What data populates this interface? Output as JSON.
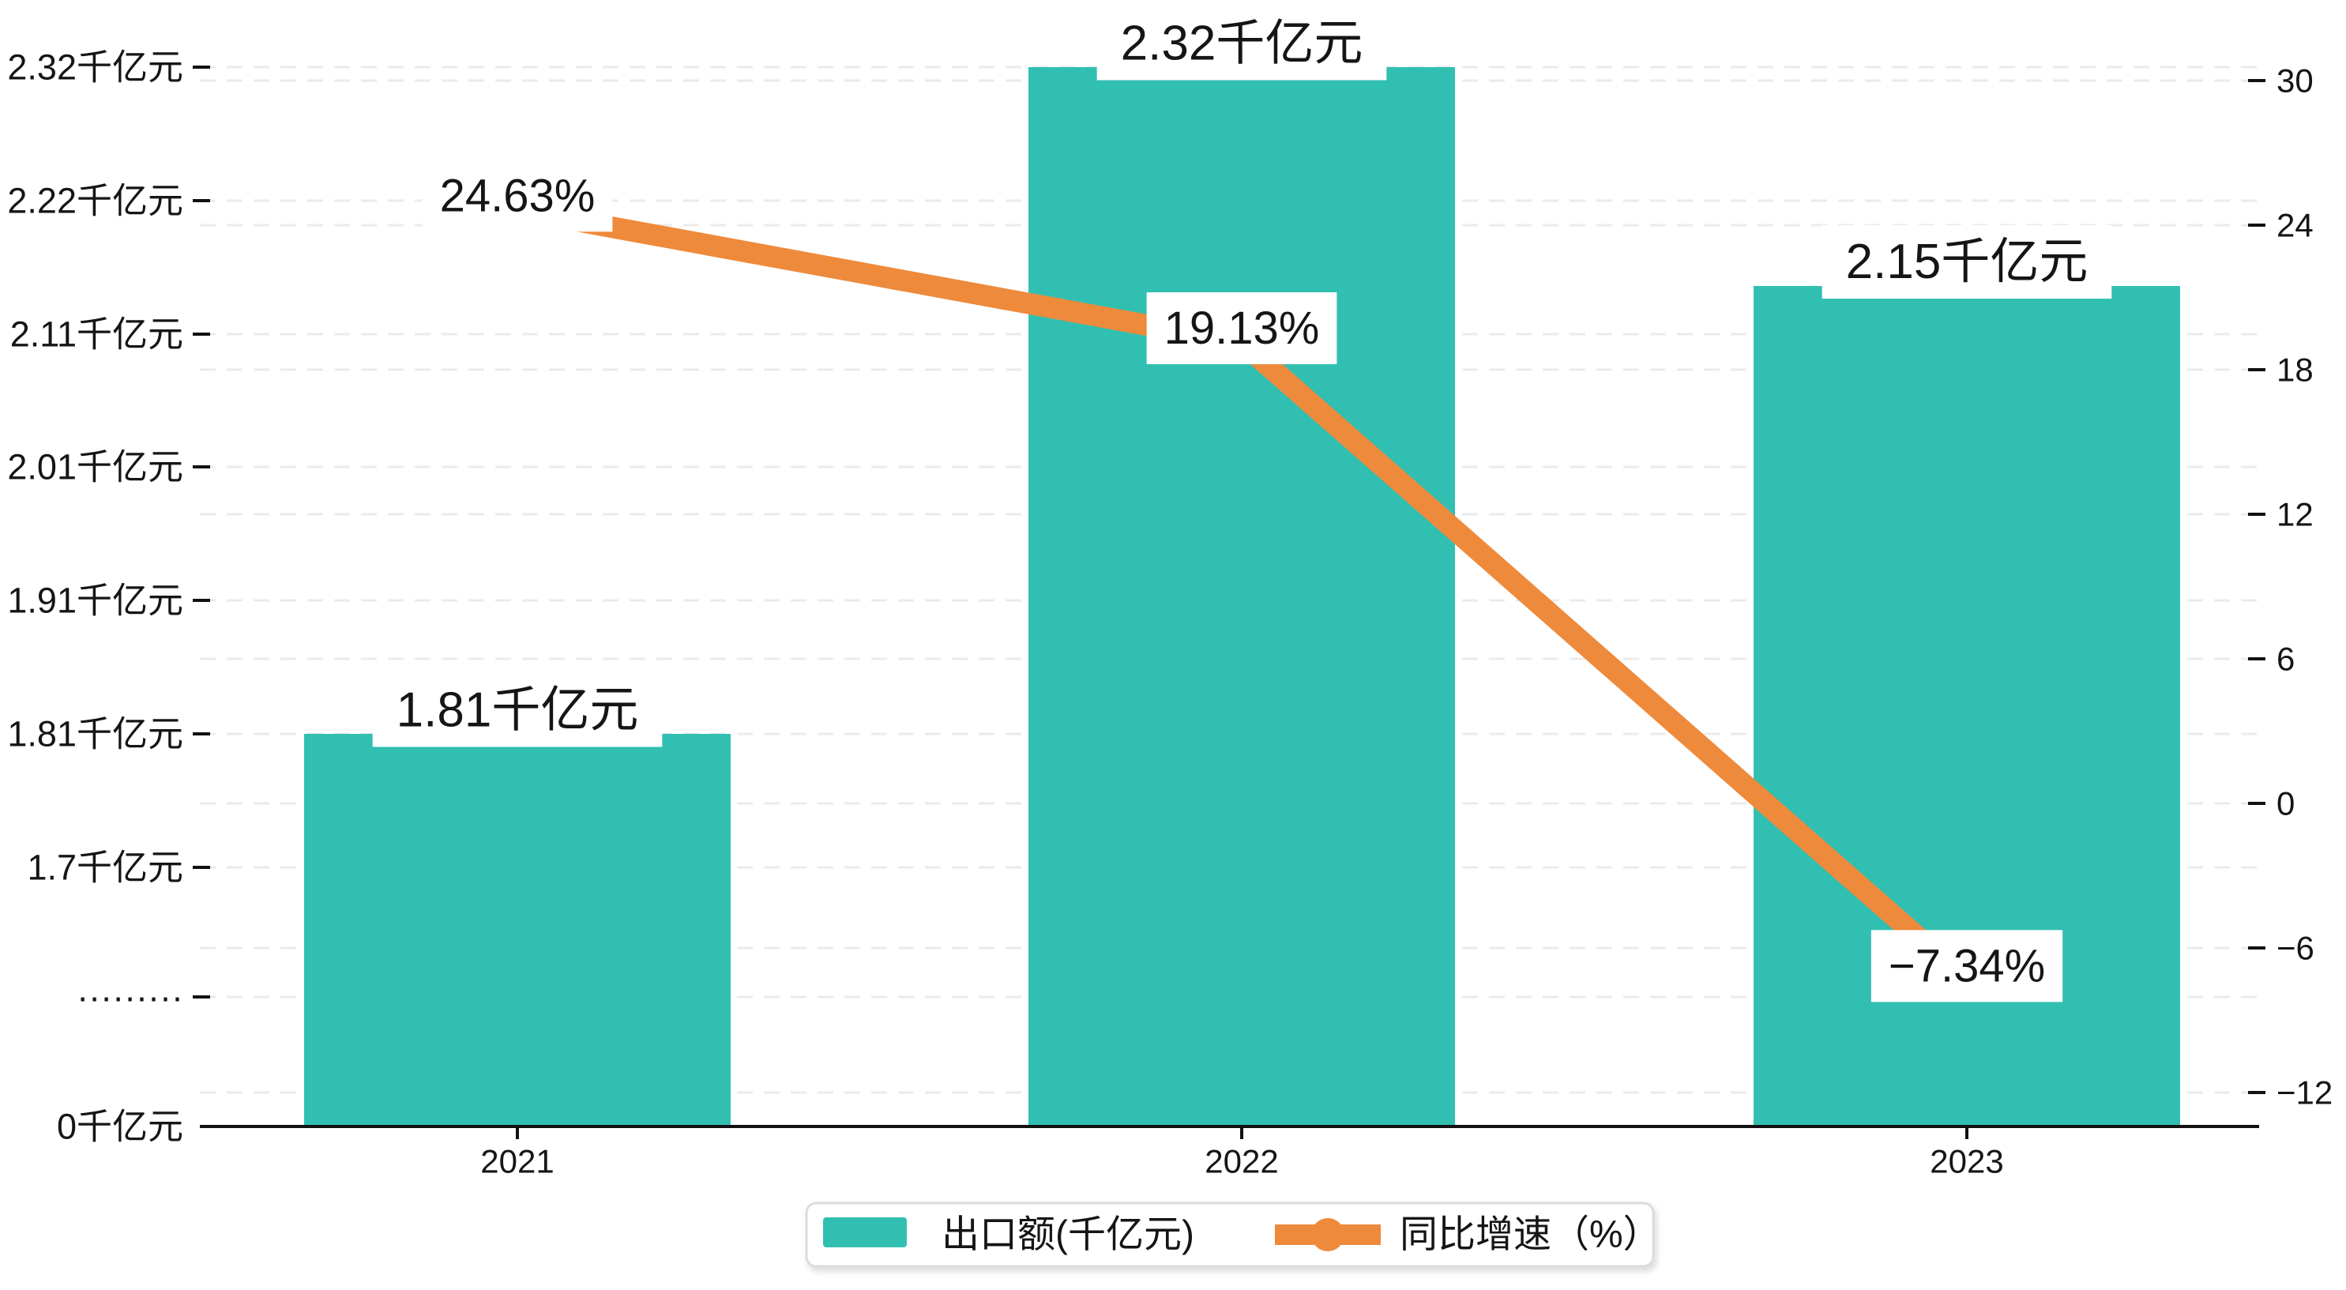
{
  "chart_data": {
    "type": "bar",
    "subtype": "bar+line dual-axis combo",
    "title": "",
    "categories": [
      "2021",
      "2022",
      "2023"
    ],
    "series": [
      {
        "name": "出口额(千亿元)",
        "type": "bar",
        "axis": "left",
        "color": "#31bfb2",
        "values": [
          1.81,
          2.32,
          2.15
        ],
        "data_labels": [
          "1.81千亿元",
          "2.32千亿元",
          "2.15千亿元"
        ]
      },
      {
        "name": "同比增速（%）",
        "type": "line",
        "axis": "right",
        "color": "#ee8a3c",
        "values": [
          24.63,
          19.13,
          -7.34
        ],
        "data_labels": [
          "24.63%",
          "19.13%",
          "−7.34%"
        ]
      }
    ],
    "left_axis": {
      "unit": "千亿元",
      "has_break": true,
      "tick_labels": [
        "2.32千亿元",
        "2.22千亿元",
        "2.11千亿元",
        "2.01千亿元",
        "1.91千亿元",
        "1.81千亿元",
        "1.7千亿元",
        "·········",
        "0千亿元"
      ]
    },
    "right_axis": {
      "unit": "%",
      "min": -12,
      "max": 30,
      "tick_values": [
        30,
        24,
        18,
        12,
        6,
        0,
        -6,
        -12
      ],
      "tick_labels": [
        "30",
        "24",
        "18",
        "12",
        "6",
        "0",
        "−6",
        "−12"
      ]
    },
    "grid": "dashed-horizontal",
    "legend_position": "bottom-center"
  },
  "legend": {
    "items": [
      {
        "label": "出口额(千亿元)",
        "marker": "bar-swatch",
        "color": "#31bfb2"
      },
      {
        "label": "同比增速（%）",
        "marker": "line-dot",
        "color": "#ee8a3c"
      }
    ]
  }
}
